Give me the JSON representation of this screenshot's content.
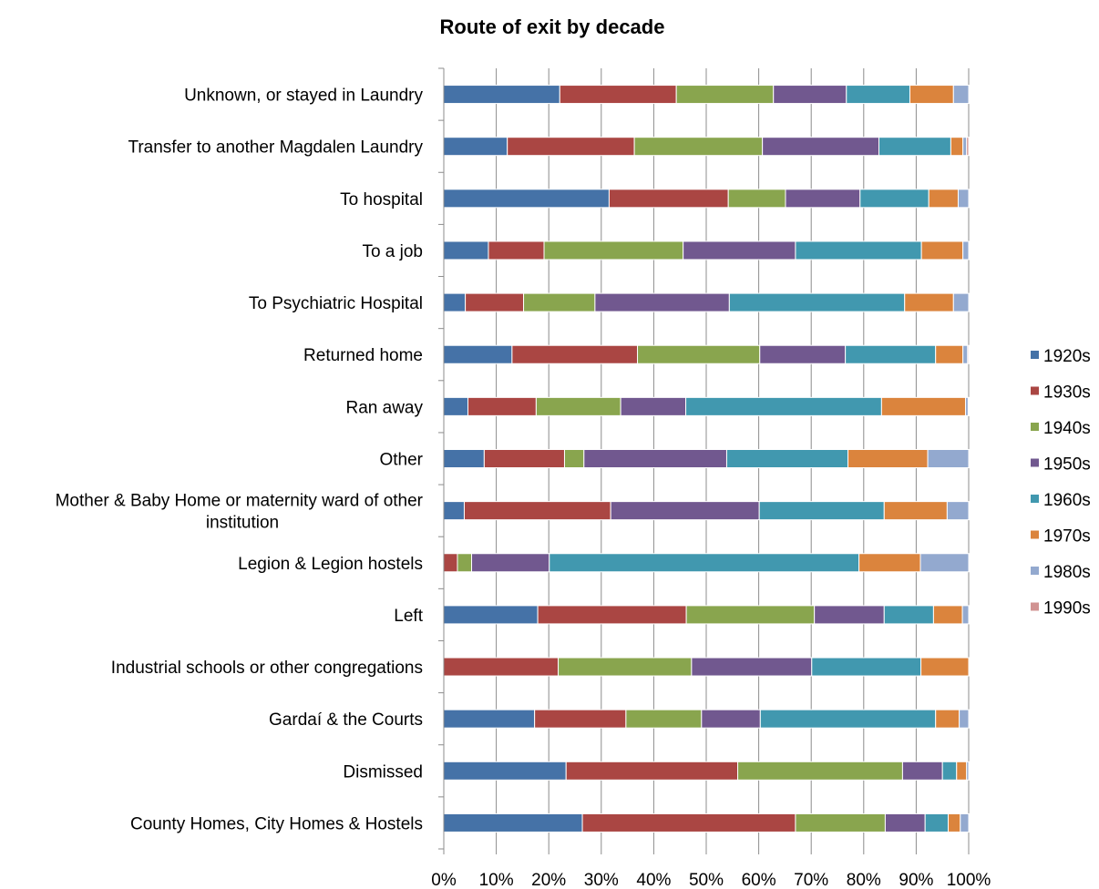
{
  "chart_data": {
    "type": "bar",
    "orientation": "horizontal",
    "stacked": "percent",
    "title": "Route of exit by decade",
    "xlabel": "",
    "ylabel": "",
    "xlim": [
      0,
      100
    ],
    "x_ticks": [
      "0%",
      "10%",
      "20%",
      "30%",
      "40%",
      "50%",
      "60%",
      "70%",
      "80%",
      "90%",
      "100%"
    ],
    "grid": "vertical",
    "legend_position": "right",
    "categories": [
      [
        "Unknown, or stayed in Laundry"
      ],
      [
        "Transfer to another Magdalen Laundry"
      ],
      [
        "To hospital"
      ],
      [
        "To a job"
      ],
      [
        "To Psychiatric Hospital"
      ],
      [
        "Returned home"
      ],
      [
        "Ran away"
      ],
      [
        "Other"
      ],
      [
        "Mother & Baby Home or maternity ward of other",
        "institution"
      ],
      [
        "Legion & Legion hostels"
      ],
      [
        "Left"
      ],
      [
        "Industrial schools or other congregations"
      ],
      [
        "Gardaí & the Courts"
      ],
      [
        "Dismissed"
      ],
      [
        "County Homes, City Homes & Hostels"
      ]
    ],
    "series": [
      {
        "name": "1920s",
        "color": "#4572a7",
        "values": [
          22.1,
          12.1,
          31.5,
          8.5,
          4.1,
          13.0,
          4.6,
          7.7,
          3.9,
          0,
          17.9,
          0,
          17.3,
          23.3,
          26.4
        ]
      },
      {
        "name": "1930s",
        "color": "#aa4643",
        "values": [
          22.2,
          24.2,
          22.7,
          10.6,
          11.1,
          23.9,
          13.0,
          15.3,
          27.9,
          2.6,
          28.3,
          21.8,
          17.4,
          32.7,
          40.6
        ]
      },
      {
        "name": "1940s",
        "color": "#89a54e",
        "values": [
          18.5,
          24.4,
          10.9,
          26.5,
          13.6,
          23.3,
          16.1,
          3.7,
          0,
          2.7,
          24.4,
          25.4,
          14.4,
          31.4,
          17.1
        ]
      },
      {
        "name": "1950s",
        "color": "#71588f",
        "values": [
          13.9,
          22.2,
          14.2,
          21.4,
          25.6,
          16.3,
          12.4,
          27.2,
          28.3,
          14.8,
          13.3,
          22.9,
          11.2,
          7.6,
          7.6
        ]
      },
      {
        "name": "1960s",
        "color": "#4198af",
        "values": [
          12.1,
          13.7,
          13.1,
          24.0,
          33.4,
          17.2,
          37.3,
          23.1,
          23.8,
          59.0,
          9.4,
          20.8,
          33.4,
          2.7,
          4.4
        ]
      },
      {
        "name": "1970s",
        "color": "#db843d",
        "values": [
          8.3,
          2.3,
          5.6,
          7.9,
          9.3,
          5.2,
          16.0,
          15.2,
          12.0,
          11.7,
          5.5,
          9.1,
          4.5,
          1.9,
          2.3
        ]
      },
      {
        "name": "1980s",
        "color": "#93a9cf",
        "values": [
          2.9,
          0.7,
          2.0,
          1.1,
          2.9,
          0.9,
          0.5,
          7.8,
          4.1,
          9.2,
          1.2,
          0,
          1.8,
          0.4,
          1.6
        ]
      },
      {
        "name": "1990s",
        "color": "#d19392",
        "values": [
          0,
          0.4,
          0,
          0,
          0,
          0.2,
          0.1,
          0,
          0,
          0,
          0,
          0,
          0,
          0,
          0
        ]
      }
    ]
  }
}
